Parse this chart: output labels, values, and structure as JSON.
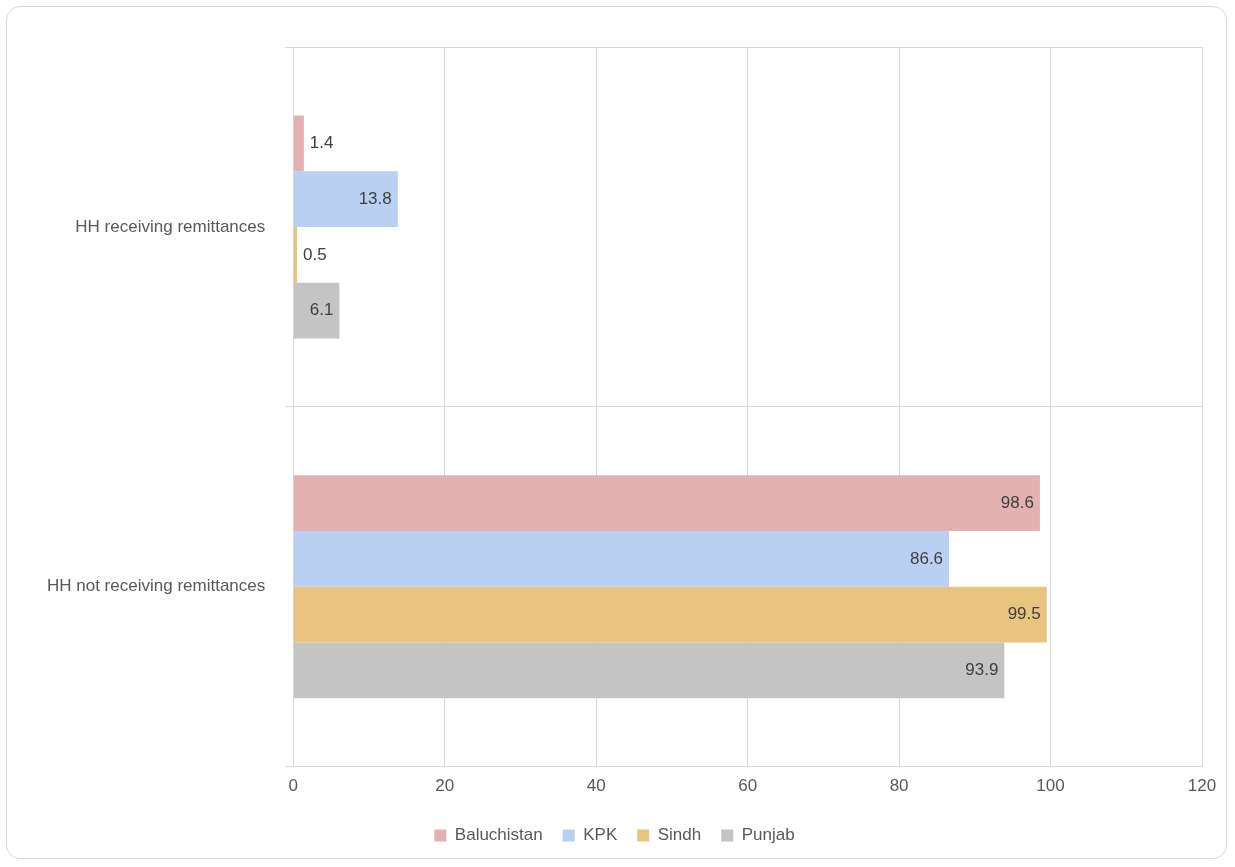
{
  "chart_data": {
    "type": "bar",
    "orientation": "horizontal",
    "categories": [
      "HH receiving remittances",
      "HH not receiving remittances"
    ],
    "series": [
      {
        "name": "Baluchistan",
        "color": "#e3b1b1",
        "values": [
          1.4,
          98.6
        ]
      },
      {
        "name": "KPK",
        "color": "#b9d0f2",
        "values": [
          13.8,
          86.6
        ]
      },
      {
        "name": "Sindh",
        "color": "#e9c47e",
        "values": [
          0.5,
          99.5
        ]
      },
      {
        "name": "Punjab",
        "color": "#c4c4c4",
        "values": [
          6.1,
          93.9
        ]
      }
    ],
    "xlim": [
      0,
      120
    ],
    "xticks": [
      0,
      20,
      40,
      60,
      80,
      100,
      120
    ],
    "grid": true,
    "legend": "bottom",
    "data_labels": true
  }
}
